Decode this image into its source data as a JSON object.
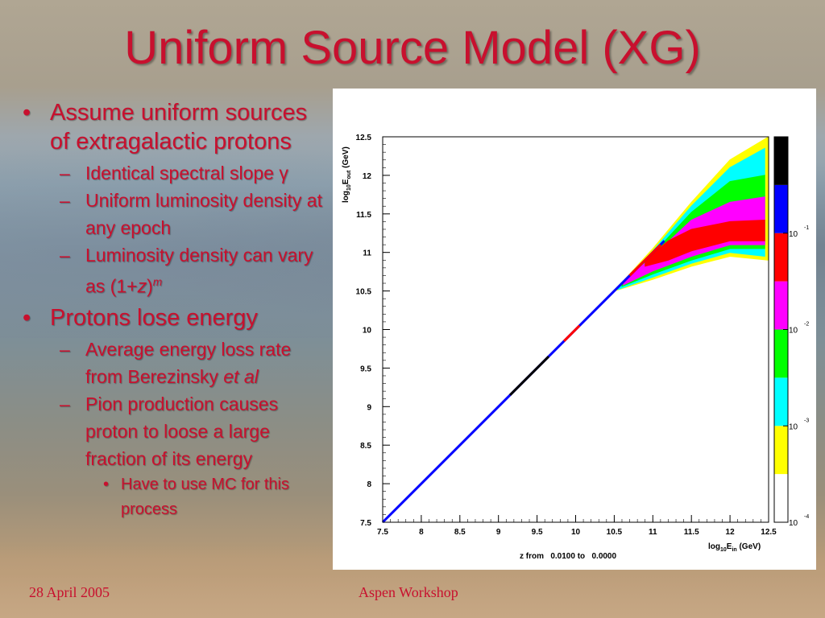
{
  "slide": {
    "title": "Uniform Source Model (XG)",
    "bullets": {
      "b1": "Assume uniform sources of extragalactic protons",
      "b1_1_pre": "Identical spectral slope ",
      "b1_1_sym": "γ",
      "b1_2": "Uniform luminosity density at any epoch",
      "b1_3_pre": "Luminosity density can vary as (1+",
      "b1_3_z": "z",
      "b1_3_close": ")",
      "b1_3_sup": "m",
      "b2": "Protons lose energy",
      "b2_1_pre": "Average energy loss rate from Berezinsky ",
      "b2_1_em": "et al",
      "b2_2": "Pion production causes proton to loose a large fraction of its energy",
      "b2_2_1": "Have to use MC for this process"
    },
    "footer": {
      "date": "28 April 2005",
      "event": "Aspen Workshop"
    }
  },
  "chart_data": {
    "type": "heatmap",
    "xlabel_main": "log",
    "xlabel_sub": "10",
    "xlabel_var": "E",
    "xlabel_varsub": "in",
    "xlabel_unit": " (GeV)",
    "ylabel_main": "log",
    "ylabel_sub": "10",
    "ylabel_var": "E",
    "ylabel_varsub": "out",
    "ylabel_unit": " (GeV)",
    "caption": "z from   0.0100 to   0.0000",
    "xlim": [
      7.5,
      12.5
    ],
    "ylim": [
      7.5,
      12.5
    ],
    "xticks": [
      "7.5",
      "8",
      "8.5",
      "9",
      "9.5",
      "10",
      "10.5",
      "11",
      "11.5",
      "12",
      "12.5"
    ],
    "yticks": [
      "7.5",
      "8",
      "8.5",
      "9",
      "9.5",
      "10",
      "10.5",
      "11",
      "11.5",
      "12",
      "12.5"
    ],
    "colorbar": {
      "scale": "log",
      "range": [
        0.0001,
        1
      ],
      "labels": [
        {
          "base": "10",
          "exp": "-1",
          "value": 0.1
        },
        {
          "base": "10",
          "exp": "-2",
          "value": 0.01
        },
        {
          "base": "10",
          "exp": "-3",
          "value": 0.001
        },
        {
          "base": "10",
          "exp": "-4",
          "value": 0.0001
        }
      ],
      "colors": [
        "#ffffff",
        "#ffff00",
        "#00ffff",
        "#00ff00",
        "#ff00ff",
        "#ff0000",
        "#0000ff",
        "#000000"
      ]
    },
    "bands": [
      {
        "level": "yellow",
        "color": "#ffff00",
        "upper": [
          [
            10.5,
            10.5
          ],
          [
            11.0,
            11.05
          ],
          [
            11.5,
            11.65
          ],
          [
            12.0,
            12.2
          ],
          [
            12.5,
            12.5
          ]
        ],
        "lower": [
          [
            12.5,
            10.9
          ],
          [
            12.0,
            10.95
          ],
          [
            11.5,
            10.82
          ],
          [
            11.0,
            10.65
          ],
          [
            10.5,
            10.5
          ]
        ]
      },
      {
        "level": "cyan",
        "color": "#00ffff",
        "upper": [
          [
            10.55,
            10.55
          ],
          [
            11.0,
            11.02
          ],
          [
            11.5,
            11.6
          ],
          [
            12.0,
            12.1
          ],
          [
            12.45,
            12.35
          ]
        ],
        "lower": [
          [
            12.45,
            10.95
          ],
          [
            12.0,
            11.0
          ],
          [
            11.5,
            10.86
          ],
          [
            11.0,
            10.68
          ],
          [
            10.55,
            10.52
          ]
        ]
      },
      {
        "level": "green",
        "color": "#00ff00",
        "upper": [
          [
            10.6,
            10.6
          ],
          [
            11.0,
            10.98
          ],
          [
            11.5,
            11.52
          ],
          [
            12.0,
            11.92
          ],
          [
            12.45,
            12.0
          ]
        ],
        "lower": [
          [
            12.45,
            11.05
          ],
          [
            12.0,
            11.05
          ],
          [
            11.5,
            10.9
          ],
          [
            11.0,
            10.72
          ],
          [
            10.6,
            10.56
          ]
        ]
      },
      {
        "level": "magenta",
        "color": "#ff00ff",
        "upper": [
          [
            10.62,
            10.62
          ],
          [
            11.0,
            10.95
          ],
          [
            11.5,
            11.42
          ],
          [
            12.0,
            11.65
          ],
          [
            12.45,
            11.72
          ]
        ],
        "lower": [
          [
            12.45,
            11.1
          ],
          [
            12.0,
            11.1
          ],
          [
            11.5,
            10.95
          ],
          [
            11.0,
            10.76
          ],
          [
            10.62,
            10.58
          ]
        ]
      },
      {
        "level": "red",
        "color": "#ff0000",
        "upper": [
          [
            10.9,
            10.9
          ],
          [
            11.2,
            11.15
          ],
          [
            11.5,
            11.3
          ],
          [
            12.0,
            11.4
          ],
          [
            12.45,
            11.42
          ]
        ],
        "lower": [
          [
            12.45,
            11.15
          ],
          [
            12.0,
            11.15
          ],
          [
            11.5,
            11.02
          ],
          [
            11.2,
            10.9
          ],
          [
            10.9,
            10.82
          ]
        ]
      }
    ],
    "diagonal": {
      "from": [
        7.5,
        7.5
      ],
      "to": [
        11.15,
        11.15
      ],
      "color": "#0000ff"
    },
    "diagonal_marks": [
      {
        "from": 9.15,
        "to": 9.65,
        "color": "#000000"
      },
      {
        "from": 9.85,
        "to": 10.05,
        "color": "#ff0000"
      },
      {
        "from": 10.7,
        "to": 11.1,
        "color": "#ff0000"
      }
    ]
  }
}
